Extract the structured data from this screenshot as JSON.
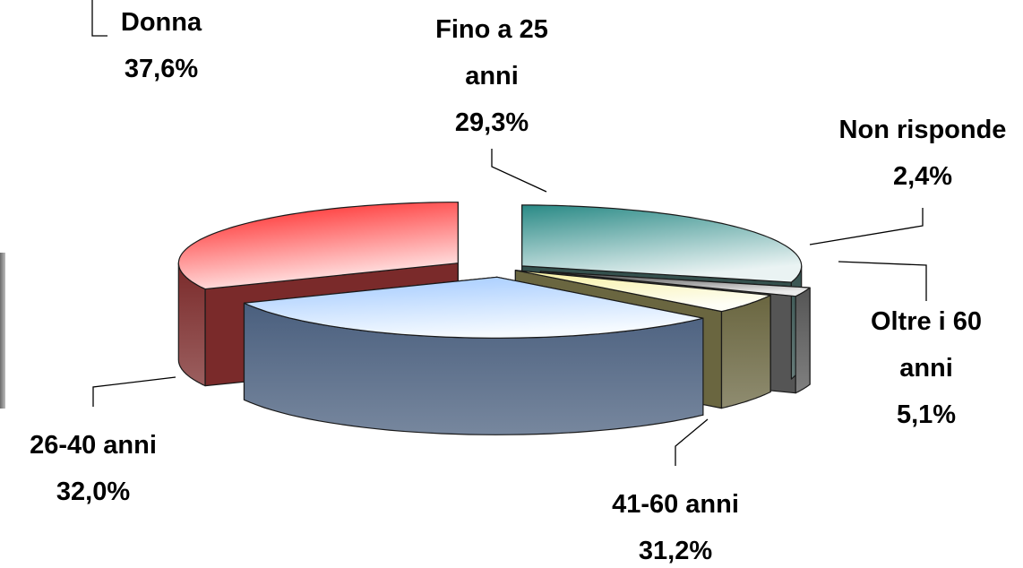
{
  "partial_label": {
    "name": "Donna",
    "value": "37,6%"
  },
  "chart_data": {
    "type": "pie",
    "three_d": true,
    "exploded": true,
    "categories": [
      "Fino a 25 anni",
      "Non risponde",
      "Oltre i 60 anni",
      "41-60 anni",
      "26-40 anni"
    ],
    "values": [
      29.3,
      2.4,
      5.1,
      31.2,
      32.0
    ],
    "labels": [
      {
        "lines": [
          "Fino a 25",
          "anni"
        ],
        "value": "29,3%"
      },
      {
        "lines": [
          "Non risponde"
        ],
        "value": "2,4%"
      },
      {
        "lines": [
          "Oltre i 60",
          "anni"
        ],
        "value": "5,1%"
      },
      {
        "lines": [
          "41-60 anni"
        ],
        "value": "31,2%"
      },
      {
        "lines": [
          "26-40 anni"
        ],
        "value": "32,0%"
      }
    ],
    "colors": [
      "#2a8a86",
      "#3a3a3a",
      "#f7f0a0",
      "#9fc8ff",
      "#ff1a1a"
    ],
    "side_colors": [
      "#34504d",
      "#555555",
      "#6a6640",
      "#4a5f7e",
      "#7a2a2a"
    ],
    "legend": "none"
  }
}
